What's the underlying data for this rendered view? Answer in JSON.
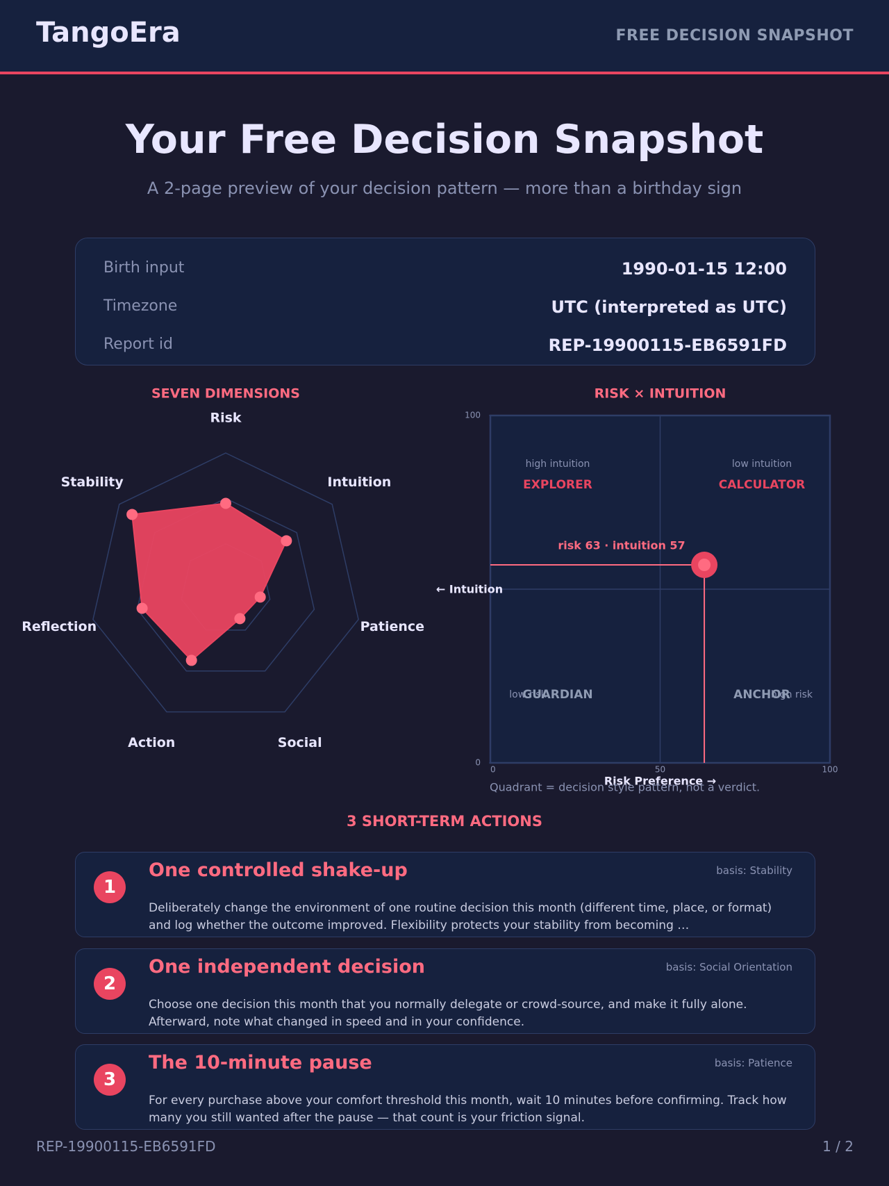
{
  "header": {
    "brand": "TangoEra",
    "tag": "FREE DECISION SNAPSHOT"
  },
  "hero": {
    "title": "Your Free Decision Snapshot",
    "subtitle": "A 2-page preview of your decision pattern — more than a birthday sign"
  },
  "info": [
    {
      "label": "Birth input",
      "value": "1990-01-15 12:00"
    },
    {
      "label": "Timezone",
      "value": "UTC (interpreted as UTC)"
    },
    {
      "label": "Report id",
      "value": "REP-19900115-EB6591FD"
    }
  ],
  "chart_data": [
    {
      "type": "radar",
      "title": "SEVEN DIMENSIONS",
      "categories": [
        "Risk",
        "Intuition",
        "Patience",
        "Social",
        "Action",
        "Reflection",
        "Stability"
      ],
      "values": [
        63,
        57,
        26,
        24,
        58,
        63,
        88
      ],
      "rlim": [
        0,
        100
      ],
      "color": "#e94560"
    },
    {
      "type": "scatter",
      "title": "RISK × INTUITION",
      "x_label": "Risk Preference →",
      "y_label": "← Intuition",
      "x": [
        63
      ],
      "y": [
        57
      ],
      "xlim": [
        0,
        100
      ],
      "ylim": [
        0,
        100
      ],
      "xticks": [
        0,
        50,
        100
      ],
      "yticks": [
        0,
        100
      ],
      "color": "#e94560",
      "annotation": "risk 63 · intuition 57",
      "quadrants": [
        {
          "hint": "high intuition",
          "name": "EXPLORER"
        },
        {
          "hint": "low intuition",
          "name": "CALCULATOR"
        },
        {
          "hint": "low risk",
          "name": "GUARDIAN"
        },
        {
          "hint": "high risk",
          "name": "ANCHOR"
        }
      ],
      "note": "Quadrant = decision style pattern, not a verdict."
    }
  ],
  "actions": {
    "title": "3 SHORT-TERM ACTIONS",
    "items": [
      {
        "number": "1",
        "title": "One controlled shake-up",
        "basis": "basis: Stability",
        "body": "Deliberately change the environment of one routine decision this month (different time, place, or format) and log whether the outcome improved. Flexibility protects your stability from becoming …"
      },
      {
        "number": "2",
        "title": "One independent decision",
        "basis": "basis: Social Orientation",
        "body": "Choose one decision this month that you normally delegate or crowd-source, and make it fully alone. Afterward, note what changed in speed and in your confidence."
      },
      {
        "number": "3",
        "title": "The 10-minute pause",
        "basis": "basis: Patience",
        "body": "For every purchase above your comfort threshold this month, wait 10 minutes before confirming. Track how many you still wanted after the pause — that count is your friction signal."
      }
    ]
  },
  "footer": {
    "report_id": "REP-19900115-EB6591FD",
    "page": "1 / 2"
  }
}
